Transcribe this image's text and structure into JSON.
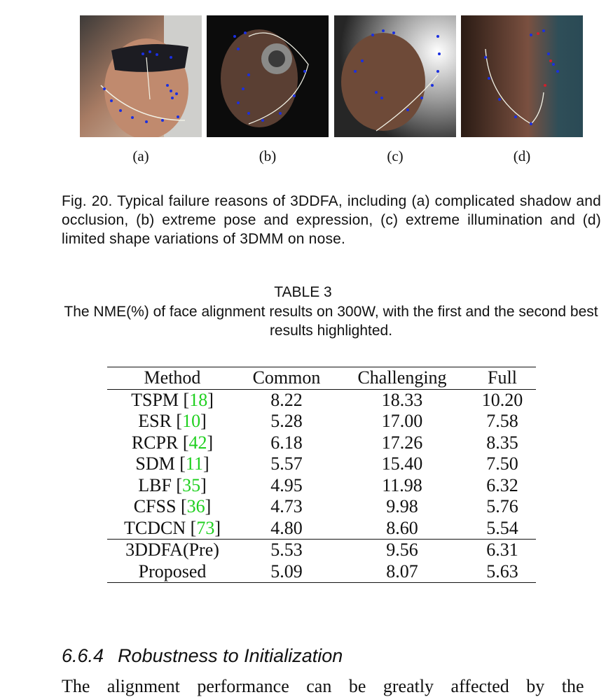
{
  "figure": {
    "subfigures": [
      {
        "label": "(a)"
      },
      {
        "label": "(b)"
      },
      {
        "label": "(c)"
      },
      {
        "label": "(d)"
      }
    ],
    "caption": "Fig. 20. Typical failure reasons of 3DDFA, including (a) complicated shadow and occlusion, (b) extreme pose and expression, (c) extreme illumination and (d) limited shape variations of 3DMM on nose."
  },
  "table": {
    "label": "TABLE 3",
    "caption": "The NME(%) of face alignment results on 300W, with the first and the second best results highlighted.",
    "columns": [
      "Method",
      "Common",
      "Challenging",
      "Full"
    ],
    "rows": [
      {
        "method": "TSPM",
        "ref": "18",
        "common": "8.22",
        "challenging": "18.33",
        "full": "10.20",
        "bold": []
      },
      {
        "method": "ESR",
        "ref": "10",
        "common": "5.28",
        "challenging": "17.00",
        "full": "7.58",
        "bold": []
      },
      {
        "method": "RCPR",
        "ref": "42",
        "common": "6.18",
        "challenging": "17.26",
        "full": "8.35",
        "bold": []
      },
      {
        "method": "SDM",
        "ref": "11",
        "common": "5.57",
        "challenging": "15.40",
        "full": "7.50",
        "bold": []
      },
      {
        "method": "LBF",
        "ref": "35",
        "common": "4.95",
        "challenging": "11.98",
        "full": "6.32",
        "bold": []
      },
      {
        "method": "CFSS",
        "ref": "36",
        "common": "4.73",
        "challenging": "9.98",
        "full": "5.76",
        "bold": [
          "common"
        ]
      },
      {
        "method": "TCDCN",
        "ref": "73",
        "common": "4.80",
        "challenging": "8.60",
        "full": "5.54",
        "bold": [
          "common",
          "challenging",
          "full"
        ]
      },
      {
        "method": "3DDFA(Pre)",
        "ref": "",
        "common": "5.53",
        "challenging": "9.56",
        "full": "6.31",
        "bold": [],
        "separator": true
      },
      {
        "method": "Proposed",
        "ref": "",
        "common": "5.09",
        "challenging": "8.07",
        "full": "5.63",
        "bold": [
          "challenging",
          "full"
        ]
      }
    ]
  },
  "section": {
    "number": "6.6.4",
    "title": "Robustness to Initialization",
    "body_start": "The alignment performance can be greatly affected by the"
  },
  "colors": {
    "reference_link": "#1fd01f",
    "landmark_points": "#1b2fe0",
    "landmark_outline": "#f2f2e6"
  }
}
